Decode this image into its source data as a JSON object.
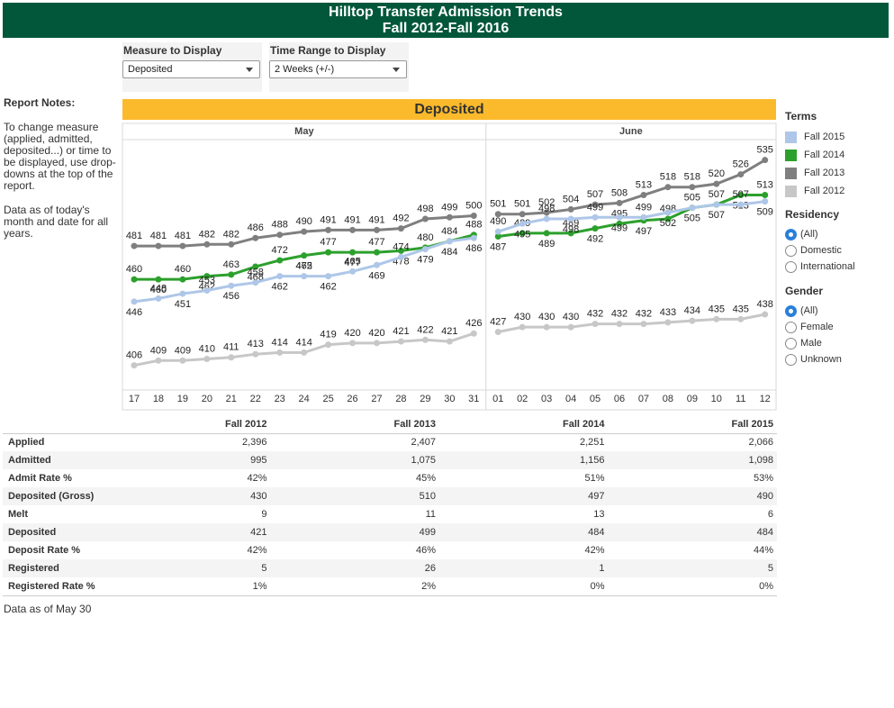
{
  "header": {
    "line1": "Hilltop Transfer Admission Trends",
    "line2": "Fall 2012-Fall 2016"
  },
  "filters": {
    "measure": {
      "label": "Measure to Display",
      "value": "Deposited"
    },
    "time_range": {
      "label": "Time Range to Display",
      "value": "2 Weeks (+/-)"
    }
  },
  "notes": {
    "title": "Report Notes:",
    "p1": "To change measure (applied, admitted, deposited...) or time to be displayed, use drop-downs at the top of the report.",
    "p2": "Data as of today's month and date for all years."
  },
  "banner": "Deposited",
  "legend": {
    "terms_title": "Terms",
    "terms": [
      {
        "name": "Fall 2015",
        "color": "#aec7e8"
      },
      {
        "name": "Fall 2014",
        "color": "#2ca02c"
      },
      {
        "name": "Fall 2013",
        "color": "#7f7f7f"
      },
      {
        "name": "Fall 2012",
        "color": "#c7c7c7"
      }
    ],
    "residency_title": "Residency",
    "residency": [
      {
        "label": "(All)",
        "selected": true
      },
      {
        "label": "Domestic",
        "selected": false
      },
      {
        "label": "International",
        "selected": false
      }
    ],
    "gender_title": "Gender",
    "gender": [
      {
        "label": "(All)",
        "selected": true
      },
      {
        "label": "Female",
        "selected": false
      },
      {
        "label": "Male",
        "selected": false
      },
      {
        "label": "Unknown",
        "selected": false
      }
    ]
  },
  "chart_data": {
    "type": "line",
    "months": [
      "May",
      "June"
    ],
    "x": [
      "17",
      "18",
      "19",
      "20",
      "21",
      "22",
      "23",
      "24",
      "25",
      "26",
      "27",
      "28",
      "29",
      "30",
      "31",
      "01",
      "02",
      "03",
      "04",
      "05",
      "06",
      "07",
      "08",
      "09",
      "10",
      "11",
      "12"
    ],
    "ylim": [
      395,
      545
    ],
    "grid": false,
    "legend_position": "right",
    "series": [
      {
        "name": "Fall 2013",
        "color": "#7f7f7f",
        "values": [
          481,
          481,
          481,
          482,
          482,
          486,
          488,
          490,
          491,
          491,
          491,
          492,
          498,
          499,
          500,
          501,
          501,
          502,
          504,
          507,
          508,
          513,
          518,
          518,
          520,
          526,
          535
        ]
      },
      {
        "name": "Fall 2014",
        "color": "#2ca02c",
        "values": [
          460,
          460,
          460,
          462,
          463,
          468,
          472,
          475,
          477,
          477,
          477,
          478,
          480,
          484,
          488,
          487,
          489,
          489,
          489,
          492,
          495,
          497,
          498,
          505,
          507,
          513,
          513
        ]
      },
      {
        "name": "Fall 2015",
        "color": "#aec7e8",
        "values": [
          446,
          448,
          451,
          453,
          456,
          458,
          462,
          462,
          462,
          465,
          469,
          474,
          479,
          484,
          486,
          490,
          495,
          498,
          498,
          499,
          499,
          499,
          502,
          505,
          507,
          507,
          509
        ]
      },
      {
        "name": "Fall 2012",
        "color": "#c7c7c7",
        "values": [
          406,
          409,
          409,
          410,
          411,
          413,
          414,
          414,
          419,
          420,
          420,
          421,
          422,
          421,
          426,
          427,
          430,
          430,
          430,
          432,
          432,
          432,
          433,
          434,
          435,
          435,
          438
        ]
      }
    ]
  },
  "table": {
    "columns": [
      "Fall 2012",
      "Fall 2013",
      "Fall 2014",
      "Fall 2015"
    ],
    "rows": [
      {
        "label": "Applied",
        "values": [
          "2,396",
          "2,407",
          "2,251",
          "2,066"
        ]
      },
      {
        "label": "Admitted",
        "values": [
          "995",
          "1,075",
          "1,156",
          "1,098"
        ]
      },
      {
        "label": "Admit Rate %",
        "values": [
          "42%",
          "45%",
          "51%",
          "53%"
        ]
      },
      {
        "label": "Deposited (Gross)",
        "values": [
          "430",
          "510",
          "497",
          "490"
        ]
      },
      {
        "label": "Melt",
        "values": [
          "9",
          "11",
          "13",
          "6"
        ]
      },
      {
        "label": "Deposited",
        "values": [
          "421",
          "499",
          "484",
          "484"
        ]
      },
      {
        "label": "Deposit Rate %",
        "values": [
          "42%",
          "46%",
          "42%",
          "44%"
        ]
      },
      {
        "label": "Registered",
        "values": [
          "5",
          "26",
          "1",
          "5"
        ]
      },
      {
        "label": "Registered Rate %",
        "values": [
          "1%",
          "2%",
          "0%",
          "0%"
        ]
      }
    ]
  },
  "footer": {
    "as_of": "Data as of May 30"
  }
}
